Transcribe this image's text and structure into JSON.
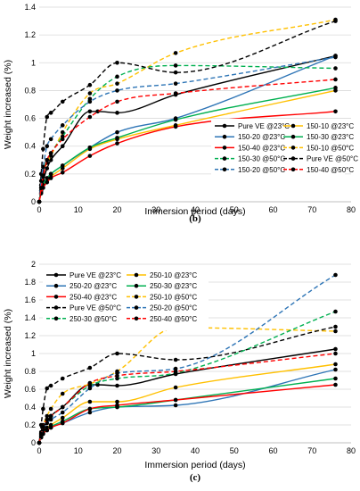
{
  "chart_data": [
    {
      "type": "line",
      "panel_label": "(b)",
      "xlabel": "Immersion period (days)",
      "ylabel": "Weight increased (%)",
      "xlim": [
        0,
        80
      ],
      "ylim": [
        0,
        1.4
      ],
      "xticks": [
        "0",
        "10",
        "20",
        "30",
        "40",
        "50",
        "60",
        "70",
        "80"
      ],
      "yticks": [
        "0",
        "0.2",
        "0.4",
        "0.6",
        "0.8",
        "1",
        "1.2",
        "1.4"
      ],
      "grid": "horizontal",
      "legend_position": "bottom-right",
      "series": [
        {
          "name": "Pure VE @23°C",
          "color": "#000000",
          "dash": false,
          "points": [
            [
              0,
              0
            ],
            [
              0.5,
              0.1
            ],
            [
              1,
              0.15
            ],
            [
              2,
              0.24
            ],
            [
              3,
              0.3
            ],
            [
              6,
              0.4
            ],
            [
              13,
              0.65
            ],
            [
              15,
              0.65
            ],
            [
              20,
              0.64
            ],
            [
              35,
              0.77
            ],
            [
              76,
              1.05
            ]
          ]
        },
        {
          "name": "150-10 @23°C",
          "color": "#ffc000",
          "dash": false,
          "points": [
            [
              0,
              0
            ],
            [
              0.5,
              0.07
            ],
            [
              1,
              0.1
            ],
            [
              2,
              0.15
            ],
            [
              3,
              0.18
            ],
            [
              6,
              0.24
            ],
            [
              13,
              0.38
            ],
            [
              20,
              0.45
            ],
            [
              35,
              0.55
            ],
            [
              76,
              0.8
            ]
          ]
        },
        {
          "name": "150-20 @23°C",
          "color": "#2e75b6",
          "dash": false,
          "points": [
            [
              0,
              0
            ],
            [
              0.5,
              0.08
            ],
            [
              1,
              0.12
            ],
            [
              2,
              0.17
            ],
            [
              3,
              0.2
            ],
            [
              6,
              0.26
            ],
            [
              13,
              0.39
            ],
            [
              20,
              0.5
            ],
            [
              35,
              0.6
            ],
            [
              76,
              1.05
            ]
          ]
        },
        {
          "name": "150-30 @23°C",
          "color": "#00b050",
          "dash": false,
          "points": [
            [
              0,
              0
            ],
            [
              0.5,
              0.08
            ],
            [
              1,
              0.12
            ],
            [
              2,
              0.17
            ],
            [
              3,
              0.2
            ],
            [
              6,
              0.26
            ],
            [
              13,
              0.39
            ],
            [
              20,
              0.46
            ],
            [
              35,
              0.59
            ],
            [
              76,
              0.82
            ]
          ]
        },
        {
          "name": "150-40 @23°C",
          "color": "#ff0000",
          "dash": false,
          "points": [
            [
              0,
              0
            ],
            [
              0.5,
              0.06
            ],
            [
              1,
              0.1
            ],
            [
              2,
              0.14
            ],
            [
              3,
              0.17
            ],
            [
              6,
              0.21
            ],
            [
              13,
              0.33
            ],
            [
              20,
              0.42
            ],
            [
              35,
              0.54
            ],
            [
              76,
              0.65
            ]
          ]
        },
        {
          "name": "150-10 @50°C",
          "color": "#ffc000",
          "dash": true,
          "points": [
            [
              0,
              0
            ],
            [
              0.5,
              0.12
            ],
            [
              1,
              0.2
            ],
            [
              2,
              0.28
            ],
            [
              3,
              0.33
            ],
            [
              6,
              0.5
            ],
            [
              13,
              0.78
            ],
            [
              20,
              0.85
            ],
            [
              35,
              1.07
            ],
            [
              76,
              1.31
            ]
          ]
        },
        {
          "name": "150-30 @50°C",
          "color": "#00b050",
          "dash": true,
          "points": [
            [
              0,
              0
            ],
            [
              0.5,
              0.12
            ],
            [
              1,
              0.22
            ],
            [
              2,
              0.3
            ],
            [
              3,
              0.35
            ],
            [
              6,
              0.47
            ],
            [
              13,
              0.74
            ],
            [
              20,
              0.9
            ],
            [
              35,
              0.98
            ],
            [
              76,
              0.96
            ]
          ]
        },
        {
          "name": "Pure VE @50°C",
          "color": "#000000",
          "dash": true,
          "points": [
            [
              0,
              0
            ],
            [
              0.5,
              0.2
            ],
            [
              1,
              0.38
            ],
            [
              2,
              0.61
            ],
            [
              3,
              0.64
            ],
            [
              6,
              0.72
            ],
            [
              13,
              0.84
            ],
            [
              20,
              1.0
            ],
            [
              35,
              0.93
            ],
            [
              76,
              1.3
            ]
          ]
        },
        {
          "name": "150-20 @50°C",
          "color": "#2e75b6",
          "dash": true,
          "points": [
            [
              0,
              0
            ],
            [
              0.5,
              0.15
            ],
            [
              1,
              0.25
            ],
            [
              2,
              0.4
            ],
            [
              3,
              0.45
            ],
            [
              6,
              0.55
            ],
            [
              13,
              0.72
            ],
            [
              20,
              0.8
            ],
            [
              35,
              0.85
            ],
            [
              76,
              1.04
            ]
          ]
        },
        {
          "name": "150-40 @50°C",
          "color": "#ff0000",
          "dash": true,
          "points": [
            [
              0,
              0
            ],
            [
              0.5,
              0.1
            ],
            [
              1,
              0.18
            ],
            [
              2,
              0.3
            ],
            [
              3,
              0.35
            ],
            [
              6,
              0.45
            ],
            [
              13,
              0.61
            ],
            [
              20,
              0.72
            ],
            [
              35,
              0.78
            ],
            [
              76,
              0.88
            ]
          ]
        }
      ]
    },
    {
      "type": "line",
      "panel_label": "(c)",
      "xlabel": "Immersion period (days)",
      "ylabel": "Weight increased (%)",
      "xlim": [
        0,
        80
      ],
      "ylim": [
        0,
        2
      ],
      "xticks": [
        "0",
        "10",
        "20",
        "30",
        "40",
        "50",
        "60",
        "70",
        "80"
      ],
      "yticks": [
        "0",
        "0.2",
        "0.4",
        "0.6",
        "0.8",
        "1",
        "1.2",
        "1.4",
        "1.6",
        "1.8",
        "2"
      ],
      "grid": "horizontal",
      "legend_position": "top-left",
      "series": [
        {
          "name": "Pure VE @23°C",
          "color": "#000000",
          "dash": false,
          "points": [
            [
              0,
              0
            ],
            [
              0.5,
              0.1
            ],
            [
              1,
              0.15
            ],
            [
              2,
              0.24
            ],
            [
              3,
              0.3
            ],
            [
              6,
              0.4
            ],
            [
              13,
              0.65
            ],
            [
              15,
              0.65
            ],
            [
              20,
              0.64
            ],
            [
              35,
              0.77
            ],
            [
              76,
              1.05
            ]
          ]
        },
        {
          "name": "250-10 @23°C",
          "color": "#ffc000",
          "dash": false,
          "points": [
            [
              0,
              0
            ],
            [
              0.5,
              0.08
            ],
            [
              1,
              0.12
            ],
            [
              2,
              0.17
            ],
            [
              3,
              0.2
            ],
            [
              6,
              0.28
            ],
            [
              13,
              0.46
            ],
            [
              20,
              0.46
            ],
            [
              35,
              0.62
            ],
            [
              76,
              0.88
            ]
          ]
        },
        {
          "name": "250-20 @23°C",
          "color": "#2e75b6",
          "dash": false,
          "points": [
            [
              0,
              0
            ],
            [
              0.5,
              0.06
            ],
            [
              1,
              0.1
            ],
            [
              2,
              0.14
            ],
            [
              3,
              0.17
            ],
            [
              6,
              0.22
            ],
            [
              13,
              0.34
            ],
            [
              20,
              0.4
            ],
            [
              35,
              0.42
            ],
            [
              76,
              0.82
            ]
          ]
        },
        {
          "name": "250-30 @23°C",
          "color": "#00b050",
          "dash": false,
          "points": [
            [
              0,
              0
            ],
            [
              0.5,
              0.07
            ],
            [
              1,
              0.11
            ],
            [
              2,
              0.15
            ],
            [
              3,
              0.18
            ],
            [
              6,
              0.24
            ],
            [
              13,
              0.38
            ],
            [
              20,
              0.4
            ],
            [
              35,
              0.48
            ],
            [
              76,
              0.72
            ]
          ]
        },
        {
          "name": "250-40 @23°C",
          "color": "#ff0000",
          "dash": false,
          "points": [
            [
              0,
              0
            ],
            [
              0.5,
              0.06
            ],
            [
              1,
              0.1
            ],
            [
              2,
              0.14
            ],
            [
              3,
              0.17
            ],
            [
              6,
              0.22
            ],
            [
              13,
              0.38
            ],
            [
              20,
              0.42
            ],
            [
              35,
              0.48
            ],
            [
              76,
              0.65
            ]
          ]
        },
        {
          "name": "250-10 @50°C",
          "color": "#ffc000",
          "dash": true,
          "points": [
            [
              0,
              0
            ],
            [
              0.5,
              0.12
            ],
            [
              1,
              0.2
            ],
            [
              2,
              0.3
            ],
            [
              3,
              0.38
            ],
            [
              6,
              0.55
            ],
            [
              13,
              0.66
            ],
            [
              20,
              0.8
            ],
            [
              35,
              1.29
            ],
            [
              76,
              1.25
            ]
          ]
        },
        {
          "name": "Pure VE @50°C",
          "color": "#000000",
          "dash": true,
          "points": [
            [
              0,
              0
            ],
            [
              0.5,
              0.2
            ],
            [
              1,
              0.38
            ],
            [
              2,
              0.61
            ],
            [
              3,
              0.64
            ],
            [
              6,
              0.72
            ],
            [
              13,
              0.84
            ],
            [
              20,
              1.0
            ],
            [
              35,
              0.93
            ],
            [
              76,
              1.3
            ]
          ]
        },
        {
          "name": "250-20 @50°C",
          "color": "#2e75b6",
          "dash": true,
          "points": [
            [
              0,
              0
            ],
            [
              0.5,
              0.08
            ],
            [
              1,
              0.15
            ],
            [
              2,
              0.22
            ],
            [
              3,
              0.26
            ],
            [
              6,
              0.34
            ],
            [
              13,
              0.61
            ],
            [
              20,
              0.78
            ],
            [
              35,
              0.83
            ],
            [
              76,
              1.88
            ]
          ]
        },
        {
          "name": "250-30 @50°C",
          "color": "#00b050",
          "dash": true,
          "points": [
            [
              0,
              0
            ],
            [
              0.5,
              0.1
            ],
            [
              1,
              0.18
            ],
            [
              2,
              0.26
            ],
            [
              3,
              0.3
            ],
            [
              6,
              0.4
            ],
            [
              13,
              0.64
            ],
            [
              20,
              0.72
            ],
            [
              35,
              0.78
            ],
            [
              76,
              1.47
            ]
          ]
        },
        {
          "name": "250-40 @50°C",
          "color": "#ff0000",
          "dash": true,
          "points": [
            [
              0,
              0
            ],
            [
              0.5,
              0.1
            ],
            [
              1,
              0.18
            ],
            [
              2,
              0.26
            ],
            [
              3,
              0.3
            ],
            [
              6,
              0.4
            ],
            [
              13,
              0.67
            ],
            [
              20,
              0.75
            ],
            [
              35,
              0.8
            ],
            [
              76,
              1.0
            ]
          ]
        }
      ]
    }
  ]
}
